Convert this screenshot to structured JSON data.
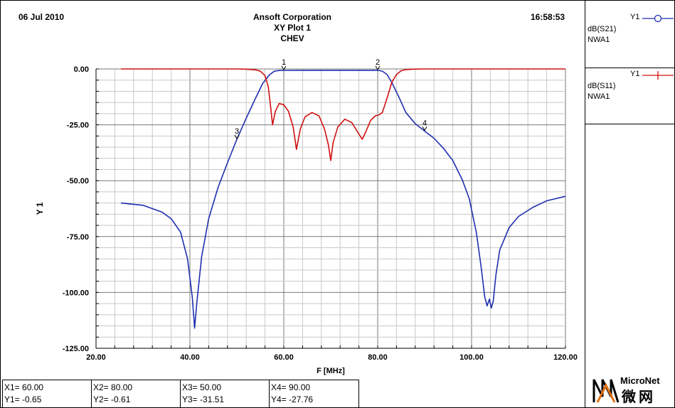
{
  "header": {
    "date": "06 Jul 2010",
    "time": "16:58:53",
    "company": "Ansoft Corporation",
    "plot_title": "XY Plot 1",
    "subtitle": "CHEV"
  },
  "legend": [
    {
      "label": "Y1",
      "name": "dB(S21)",
      "source": "NWA1",
      "color": "#1f2fb0"
    },
    {
      "label": "Y1",
      "name": "dB(S11)",
      "source": "NWA1",
      "color": "#d01010"
    }
  ],
  "markers": [
    {
      "x_text": "X1= 60.00",
      "y_text": "Y1= -0.65"
    },
    {
      "x_text": "X2= 80.00",
      "y_text": "Y2= -0.61"
    },
    {
      "x_text": "X3= 50.00",
      "y_text": "Y3= -31.51"
    },
    {
      "x_text": "X4= 90.00",
      "y_text": "Y4= -27.76"
    }
  ],
  "logo": {
    "brand": "MicroNet",
    "cn": "微网"
  },
  "chart_data": {
    "type": "line",
    "xlabel": "F [MHz]",
    "ylabel": "Y 1",
    "xlim": [
      20,
      120
    ],
    "ylim": [
      -125,
      0
    ],
    "xticks": [
      20,
      40,
      60,
      80,
      100,
      120
    ],
    "xtick_labels": [
      "20.00",
      "40.00",
      "60.00",
      "80.00",
      "100.00",
      "120.00"
    ],
    "yticks": [
      0,
      -25,
      -50,
      -75,
      -100,
      -125
    ],
    "ytick_labels": [
      "0.00",
      "-25.00",
      "-50.00",
      "-75.00",
      "-100.00",
      "-125.00"
    ],
    "grid": true,
    "series": [
      {
        "name": "dB(S21)",
        "color": "#1f2fb0",
        "x": [
          25.3,
          30,
          34,
          36,
          38,
          39.5,
          40.5,
          41,
          41.5,
          42.5,
          44,
          46,
          48,
          50,
          52,
          54,
          55.5,
          57,
          58,
          59,
          60,
          65,
          70,
          75,
          80,
          81,
          82,
          83,
          84.5,
          86,
          88,
          90,
          92,
          94,
          96,
          98,
          99.5,
          101,
          102,
          102.8,
          103.3,
          103.8,
          104.2,
          104.6,
          105.2,
          106,
          108,
          110,
          113,
          116,
          120
        ],
        "y": [
          -60,
          -61,
          -64,
          -67,
          -73,
          -85,
          -102,
          -116,
          -104,
          -84,
          -67,
          -53,
          -42,
          -31.5,
          -22,
          -13,
          -6.5,
          -2.5,
          -1,
          -0.7,
          -0.65,
          -0.6,
          -0.6,
          -0.6,
          -0.61,
          -1,
          -2.5,
          -6,
          -12.5,
          -19.5,
          -24.5,
          -27.8,
          -31,
          -35.5,
          -41,
          -49.5,
          -58,
          -73,
          -88,
          -102,
          -106,
          -103,
          -107,
          -104,
          -92,
          -81,
          -71,
          -66,
          -62,
          -59,
          -57
        ]
      },
      {
        "name": "dB(S11)",
        "color": "#d01010",
        "x": [
          25.3,
          40,
          50,
          52,
          54,
          55,
          56,
          56.7,
          57.2,
          57.6,
          58.2,
          59,
          60,
          61,
          62,
          62.7,
          63.5,
          64.5,
          66,
          67.5,
          68.7,
          69.5,
          70,
          70.5,
          71.5,
          73,
          74.5,
          75.8,
          76.7,
          77.5,
          78.5,
          79.5,
          80.3,
          81,
          82,
          83,
          84,
          85,
          86,
          88,
          90,
          100,
          120
        ],
        "y": [
          0,
          0,
          0,
          -0.1,
          -0.4,
          -1,
          -3,
          -8,
          -17,
          -25,
          -19,
          -15.5,
          -16,
          -19,
          -26,
          -36,
          -27,
          -21.5,
          -19.5,
          -21,
          -27,
          -34,
          -41,
          -33,
          -26,
          -22.5,
          -24,
          -28.5,
          -31.5,
          -28,
          -23,
          -21,
          -20.5,
          -19.5,
          -13,
          -6,
          -2.5,
          -0.8,
          -0.3,
          -0.05,
          0,
          0,
          0
        ]
      }
    ],
    "marker_points": [
      {
        "label": "1",
        "x": 60,
        "y": -0.65
      },
      {
        "label": "2",
        "x": 80,
        "y": -0.61
      },
      {
        "label": "3",
        "x": 50,
        "y": -31.51
      },
      {
        "label": "4",
        "x": 90,
        "y": -27.76
      }
    ]
  }
}
